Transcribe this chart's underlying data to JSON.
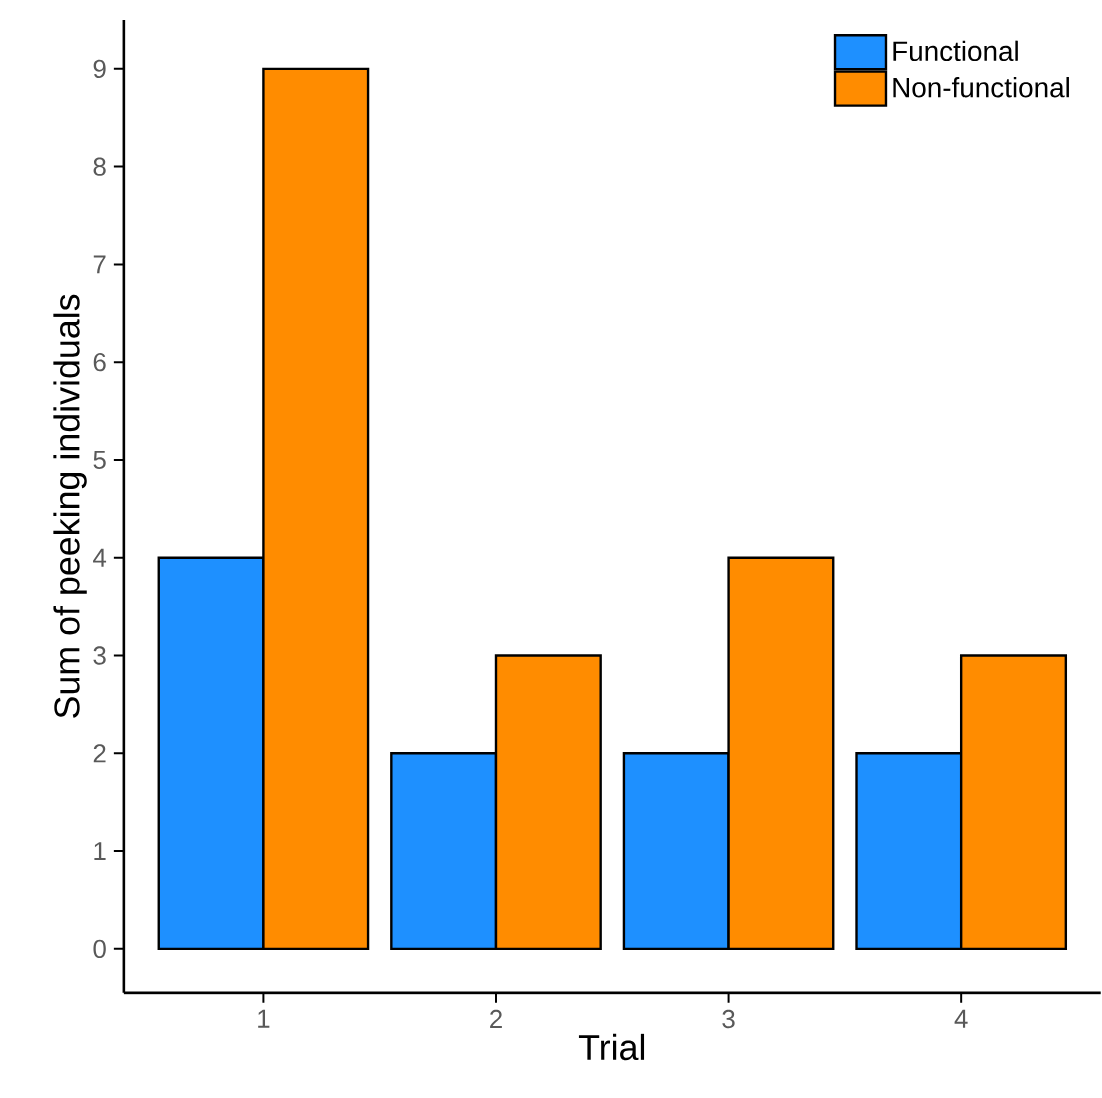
{
  "chart_data": {
    "type": "bar",
    "xlabel": "Trial",
    "ylabel": "Sum of peeking individuals",
    "categories": [
      "1",
      "2",
      "3",
      "4"
    ],
    "series": [
      {
        "name": "Functional",
        "color": "#1e90ff",
        "values": [
          4,
          2,
          2,
          2
        ]
      },
      {
        "name": "Non-functional",
        "color": "#ff8c00",
        "values": [
          9,
          3,
          4,
          3
        ]
      }
    ],
    "ylim": [
      -0.45,
      9.5
    ],
    "yticks": [
      0,
      1,
      2,
      3,
      4,
      5,
      6,
      7,
      8,
      9
    ],
    "grid": false,
    "legend": "top right"
  }
}
